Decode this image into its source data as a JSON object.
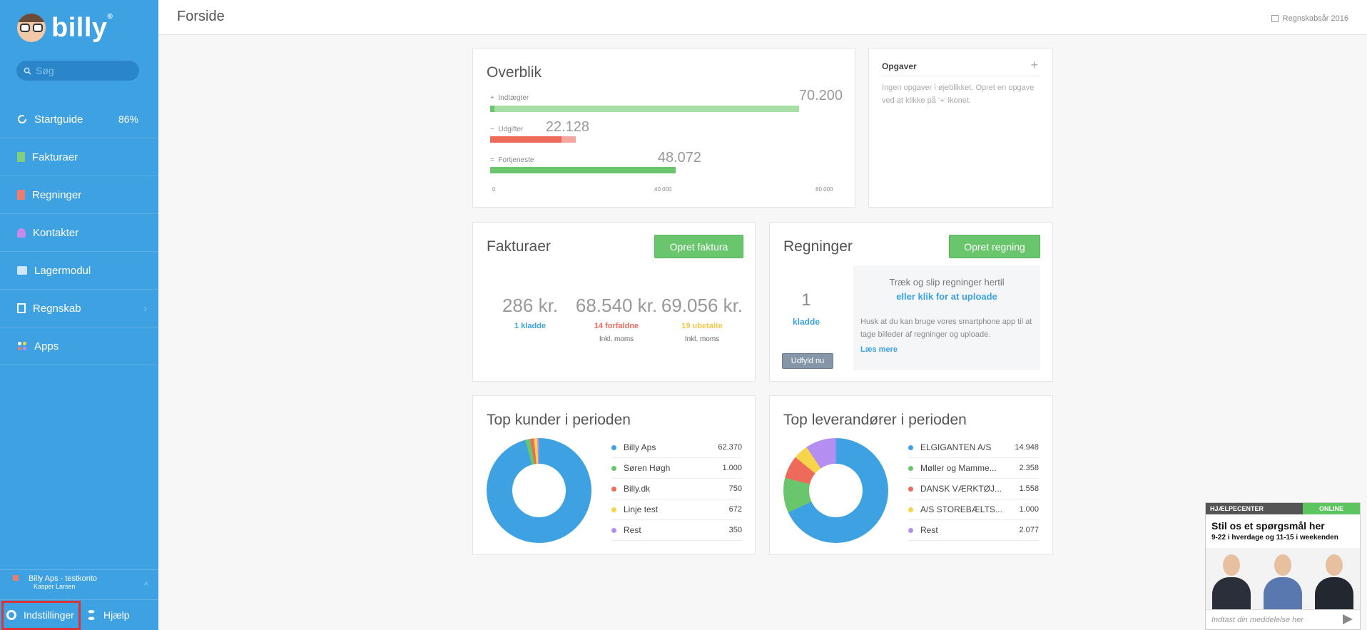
{
  "app": {
    "logo_text": "billy",
    "logo_mark": "®"
  },
  "sidebar": {
    "search_placeholder": "Søg",
    "items": [
      {
        "label": "Startguide",
        "badge": "86%",
        "icon": "progress-icon"
      },
      {
        "label": "Fakturaer",
        "icon": "invoice-icon"
      },
      {
        "label": "Regninger",
        "icon": "bill-icon"
      },
      {
        "label": "Kontakter",
        "icon": "contacts-icon"
      },
      {
        "label": "Lagermodul",
        "icon": "inventory-icon"
      },
      {
        "label": "Regnskab",
        "icon": "accounting-icon"
      },
      {
        "label": "Apps",
        "icon": "apps-icon"
      }
    ],
    "account": {
      "name": "Billy Aps - testkonto",
      "user": "Kasper Larsen"
    },
    "settings_label": "Indstillinger",
    "help_label": "Hjælp"
  },
  "header": {
    "title": "Forside",
    "fiscal_year": "Regnskabsår 2016"
  },
  "overview": {
    "title": "Overblik",
    "rows": [
      {
        "sign": "+",
        "label": "Indtægter",
        "value": "70.200",
        "amount": 70200
      },
      {
        "sign": "−",
        "label": "Udgifter",
        "value": "22.128",
        "amount": 22128
      },
      {
        "sign": "=",
        "label": "Fortjeneste",
        "value": "48.072",
        "amount": 48072
      }
    ],
    "axis": [
      "0",
      "40.000",
      "80.000"
    ]
  },
  "tasks": {
    "title": "Opgaver",
    "add": "+",
    "empty_text": "Ingen opgaver i øjeblikket. Opret en opgave ved at klikke på '+' ikonet."
  },
  "invoices": {
    "title": "Fakturaer",
    "create_button": "Opret faktura",
    "stats": [
      {
        "amount": "286 kr.",
        "label": "1 kladde",
        "note": ""
      },
      {
        "amount": "68.540 kr.",
        "label": "14 forfaldne",
        "note": "Inkl. moms"
      },
      {
        "amount": "69.056 kr.",
        "label": "19 ubetalte",
        "note": "Inkl. moms"
      }
    ]
  },
  "bills": {
    "title": "Regninger",
    "create_button": "Opret regning",
    "draft_count": "1",
    "draft_label": "kladde",
    "fill_button": "Udfyld nu",
    "drop_text": "Træk og slip regninger hertil",
    "upload_link": "eller klik for at uploade",
    "app_text": "Husk at du kan bruge vores smartphone app til at tage billeder af regninger og uploade.",
    "read_more": "Læs mere"
  },
  "top_customers": {
    "title": "Top kunder i perioden",
    "items": [
      {
        "name": "Billy Aps",
        "value": "62.370",
        "amount": 62370,
        "color": "#3da1e2"
      },
      {
        "name": "Søren Høgh",
        "value": "1.000",
        "amount": 1000,
        "color": "#69c66c"
      },
      {
        "name": "Billy.dk",
        "value": "750",
        "amount": 750,
        "color": "#ee6a5b"
      },
      {
        "name": "Linje test",
        "value": "672",
        "amount": 672,
        "color": "#f7d54a"
      },
      {
        "name": "Rest",
        "value": "350",
        "amount": 350,
        "color": "#b48ef0"
      }
    ]
  },
  "top_suppliers": {
    "title": "Top leverandører i perioden",
    "items": [
      {
        "name": "ELGIGANTEN A/S",
        "value": "14.948",
        "amount": 14948,
        "color": "#3da1e2"
      },
      {
        "name": "Møller og Mamme...",
        "value": "2.358",
        "amount": 2358,
        "color": "#69c66c"
      },
      {
        "name": "DANSK VÆRKTØJ...",
        "value": "1.558",
        "amount": 1558,
        "color": "#ee6a5b"
      },
      {
        "name": "A/S STOREBÆLTS...",
        "value": "1.000",
        "amount": 1000,
        "color": "#f7d54a"
      },
      {
        "name": "Rest",
        "value": "2.077",
        "amount": 2077,
        "color": "#b48ef0"
      }
    ]
  },
  "help_widget": {
    "header": "HJÆLPECENTER",
    "status": "ONLINE",
    "title": "Stil os et spørgsmål her",
    "hours": "9-22 i hverdage og 11-15 i weekenden",
    "input_placeholder": "Indtast din meddelelse her"
  },
  "colors": {
    "sidebar": "#3da1e2",
    "green": "#69c66c",
    "red": "#ee6a5b",
    "highlight": "#d9333b"
  }
}
